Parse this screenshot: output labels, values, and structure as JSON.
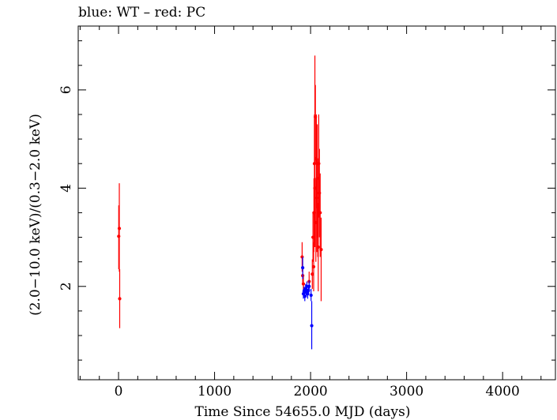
{
  "chart_data": {
    "type": "scatter",
    "title": "blue: WT – red: PC",
    "xlabel": "Time Since 54655.0 MJD (days)",
    "ylabel": "(2.0−10.0 keV)/(0.3−2.0 keV)",
    "xlim": [
      -420,
      4550
    ],
    "ylim": [
      0.1,
      7.3
    ],
    "xticks": [
      0,
      1000,
      2000,
      3000,
      4000
    ],
    "xtick_labels": [
      "0",
      "1000",
      "2000",
      "3000",
      "4000"
    ],
    "yticks": [
      2,
      4,
      6
    ],
    "ytick_labels": [
      "2",
      "4",
      "6"
    ],
    "grid": false,
    "series": [
      {
        "name": "WT",
        "color": "#0000ff",
        "points": [
          {
            "x": 1918,
            "y": 2.38,
            "ylo": 2.15,
            "yhi": 2.6
          },
          {
            "x": 1925,
            "y": 1.85,
            "ylo": 1.75,
            "yhi": 1.95
          },
          {
            "x": 1932,
            "y": 1.9,
            "ylo": 1.8,
            "yhi": 2.0
          },
          {
            "x": 1940,
            "y": 1.8,
            "ylo": 1.7,
            "yhi": 1.9
          },
          {
            "x": 1948,
            "y": 1.95,
            "ylo": 1.85,
            "yhi": 2.05
          },
          {
            "x": 1955,
            "y": 1.88,
            "ylo": 1.78,
            "yhi": 1.98
          },
          {
            "x": 1962,
            "y": 2.0,
            "ylo": 1.9,
            "yhi": 2.1
          },
          {
            "x": 1970,
            "y": 1.85,
            "ylo": 1.75,
            "yhi": 1.95
          },
          {
            "x": 1978,
            "y": 1.92,
            "ylo": 1.82,
            "yhi": 2.02
          },
          {
            "x": 1985,
            "y": 2.0,
            "ylo": 1.88,
            "yhi": 2.12
          },
          {
            "x": 2005,
            "y": 1.82,
            "ylo": 1.7,
            "yhi": 1.95
          },
          {
            "x": 2012,
            "y": 1.2,
            "ylo": 0.72,
            "yhi": 1.7
          }
        ]
      },
      {
        "name": "PC",
        "color": "#ff0000",
        "points": [
          {
            "x": 2,
            "y": 3.02,
            "ylo": 2.35,
            "yhi": 3.65
          },
          {
            "x": 8,
            "y": 3.18,
            "ylo": 2.3,
            "yhi": 4.1
          },
          {
            "x": 12,
            "y": 1.75,
            "ylo": 1.15,
            "yhi": 2.35
          },
          {
            "x": 1912,
            "y": 2.6,
            "ylo": 2.3,
            "yhi": 2.9
          },
          {
            "x": 1918,
            "y": 2.22,
            "ylo": 2.05,
            "yhi": 2.4
          },
          {
            "x": 1925,
            "y": 2.05,
            "ylo": 1.9,
            "yhi": 2.2
          },
          {
            "x": 1985,
            "y": 2.1,
            "ylo": 1.9,
            "yhi": 2.3
          },
          {
            "x": 2018,
            "y": 2.25,
            "ylo": 1.95,
            "yhi": 2.55
          },
          {
            "x": 2025,
            "y": 3.0,
            "ylo": 2.5,
            "yhi": 3.5
          },
          {
            "x": 2032,
            "y": 2.4,
            "ylo": 1.9,
            "yhi": 2.9
          },
          {
            "x": 2035,
            "y": 3.5,
            "ylo": 2.7,
            "yhi": 4.2
          },
          {
            "x": 2040,
            "y": 4.5,
            "ylo": 3.4,
            "yhi": 5.5
          },
          {
            "x": 2045,
            "y": 4.0,
            "ylo": 2.8,
            "yhi": 6.7
          },
          {
            "x": 2050,
            "y": 5.45,
            "ylo": 4.5,
            "yhi": 6.1
          },
          {
            "x": 2055,
            "y": 3.3,
            "ylo": 2.5,
            "yhi": 4.2
          },
          {
            "x": 2060,
            "y": 4.6,
            "ylo": 3.6,
            "yhi": 5.5
          },
          {
            "x": 2065,
            "y": 3.8,
            "ylo": 2.7,
            "yhi": 4.9
          },
          {
            "x": 2070,
            "y": 4.2,
            "ylo": 3.0,
            "yhi": 5.3
          },
          {
            "x": 2075,
            "y": 3.6,
            "ylo": 2.6,
            "yhi": 4.6
          },
          {
            "x": 2080,
            "y": 2.8,
            "ylo": 1.9,
            "yhi": 3.7
          },
          {
            "x": 2085,
            "y": 4.5,
            "ylo": 3.4,
            "yhi": 5.5
          },
          {
            "x": 2092,
            "y": 3.9,
            "ylo": 3.0,
            "yhi": 4.8
          },
          {
            "x": 2100,
            "y": 3.5,
            "ylo": 2.6,
            "yhi": 4.3
          },
          {
            "x": 2110,
            "y": 2.75,
            "ylo": 1.7,
            "yhi": 3.4
          }
        ]
      }
    ]
  }
}
